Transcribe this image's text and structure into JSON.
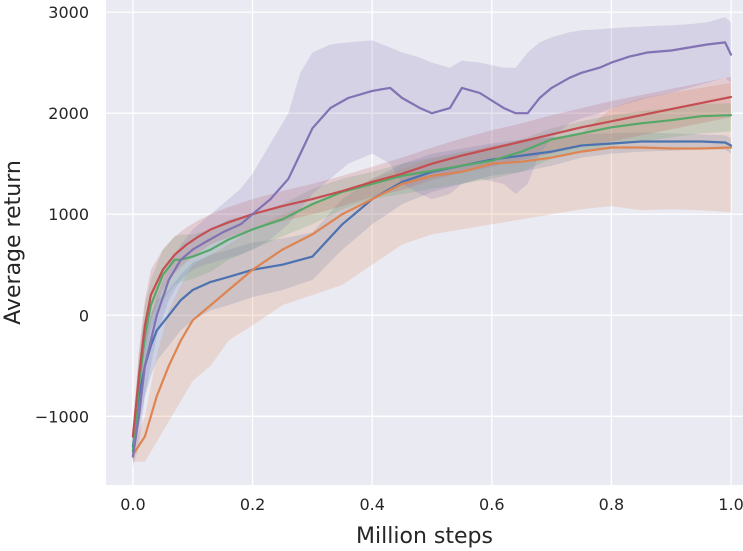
{
  "chart_data": {
    "type": "line",
    "title": "",
    "xlabel": "Million steps",
    "ylabel": "Average return",
    "xlim": [
      -0.045,
      1.02
    ],
    "ylim": [
      -1680,
      3120
    ],
    "xticks": [
      0.0,
      0.2,
      0.4,
      0.6,
      0.8,
      1.0
    ],
    "xtick_labels": [
      "0.0",
      "0.2",
      "0.4",
      "0.6",
      "0.8",
      "1.0"
    ],
    "yticks": [
      -1000,
      0,
      1000,
      2000,
      3000
    ],
    "ytick_labels": [
      "−1000",
      "0",
      "1000",
      "2000",
      "3000"
    ],
    "grid": true,
    "legend": "none",
    "background": "#eaeaf2",
    "series": [
      {
        "color": "#4c72b0",
        "x": [
          0.0,
          0.01,
          0.02,
          0.03,
          0.04,
          0.06,
          0.08,
          0.1,
          0.13,
          0.16,
          0.2,
          0.25,
          0.3,
          0.35,
          0.4,
          0.45,
          0.5,
          0.55,
          0.6,
          0.65,
          0.7,
          0.75,
          0.8,
          0.85,
          0.9,
          0.95,
          0.99,
          1.0
        ],
        "y": [
          -1300,
          -800,
          -500,
          -300,
          -150,
          0,
          150,
          250,
          330,
          380,
          450,
          500,
          580,
          900,
          1150,
          1320,
          1420,
          1480,
          1540,
          1580,
          1620,
          1680,
          1700,
          1720,
          1720,
          1720,
          1710,
          1680
        ],
        "upper": [
          -1150,
          -500,
          -200,
          0,
          150,
          250,
          400,
          520,
          600,
          650,
          720,
          760,
          820,
          1150,
          1350,
          1500,
          1600,
          1650,
          1700,
          1740,
          1760,
          1790,
          1800,
          1810,
          1800,
          1790,
          1780,
          1750
        ],
        "lower": [
          -1450,
          -1100,
          -800,
          -600,
          -450,
          -300,
          -150,
          -50,
          50,
          100,
          180,
          250,
          350,
          650,
          900,
          1100,
          1220,
          1300,
          1380,
          1420,
          1480,
          1560,
          1600,
          1620,
          1630,
          1640,
          1640,
          1600
        ]
      },
      {
        "color": "#dd8452",
        "x": [
          0.0,
          0.02,
          0.04,
          0.06,
          0.08,
          0.1,
          0.13,
          0.16,
          0.2,
          0.25,
          0.3,
          0.35,
          0.4,
          0.45,
          0.5,
          0.55,
          0.6,
          0.65,
          0.7,
          0.75,
          0.8,
          0.85,
          0.9,
          0.95,
          1.0
        ],
        "y": [
          -1380,
          -1200,
          -800,
          -500,
          -250,
          -50,
          100,
          250,
          450,
          650,
          800,
          1000,
          1150,
          1300,
          1380,
          1420,
          1500,
          1520,
          1560,
          1620,
          1660,
          1660,
          1650,
          1650,
          1660
        ],
        "upper": [
          -1300,
          -1000,
          -400,
          50,
          300,
          500,
          600,
          700,
          850,
          1000,
          1100,
          1200,
          1350,
          1450,
          1550,
          1600,
          1680,
          1720,
          1760,
          1800,
          2050,
          2150,
          2200,
          2250,
          2300
        ],
        "lower": [
          -1450,
          -1450,
          -1250,
          -1050,
          -850,
          -650,
          -500,
          -250,
          -100,
          100,
          200,
          300,
          500,
          700,
          800,
          850,
          900,
          950,
          1000,
          1050,
          1080,
          1040,
          1050,
          1040,
          1020
        ]
      },
      {
        "color": "#55a868",
        "x": [
          0.0,
          0.01,
          0.02,
          0.03,
          0.05,
          0.07,
          0.08,
          0.1,
          0.13,
          0.16,
          0.2,
          0.25,
          0.3,
          0.35,
          0.4,
          0.45,
          0.5,
          0.55,
          0.6,
          0.65,
          0.7,
          0.75,
          0.8,
          0.85,
          0.9,
          0.95,
          1.0
        ],
        "y": [
          -1350,
          -700,
          -200,
          100,
          400,
          550,
          550,
          580,
          650,
          750,
          850,
          950,
          1100,
          1220,
          1300,
          1380,
          1430,
          1480,
          1530,
          1620,
          1740,
          1800,
          1860,
          1900,
          1930,
          1970,
          1980
        ],
        "upper": [
          -1250,
          -400,
          100,
          350,
          650,
          780,
          800,
          800,
          850,
          950,
          1000,
          1100,
          1250,
          1350,
          1420,
          1500,
          1560,
          1620,
          1660,
          1740,
          1850,
          1920,
          1980,
          2020,
          2050,
          2090,
          2100
        ],
        "lower": [
          -1450,
          -1000,
          -500,
          -150,
          150,
          300,
          330,
          360,
          430,
          550,
          650,
          780,
          900,
          1050,
          1150,
          1200,
          1250,
          1300,
          1350,
          1420,
          1550,
          1620,
          1680,
          1720,
          1760,
          1800,
          1820
        ]
      },
      {
        "color": "#c44e52",
        "x": [
          0.0,
          0.01,
          0.02,
          0.03,
          0.05,
          0.07,
          0.09,
          0.11,
          0.13,
          0.16,
          0.2,
          0.25,
          0.3,
          0.35,
          0.4,
          0.45,
          0.5,
          0.55,
          0.6,
          0.65,
          0.7,
          0.75,
          0.8,
          0.85,
          0.9,
          0.95,
          1.0
        ],
        "y": [
          -1200,
          -600,
          -100,
          200,
          450,
          600,
          700,
          780,
          850,
          920,
          1000,
          1080,
          1150,
          1230,
          1320,
          1400,
          1500,
          1580,
          1650,
          1720,
          1790,
          1860,
          1920,
          1980,
          2040,
          2100,
          2160
        ],
        "upper": [
          -1100,
          -350,
          150,
          450,
          650,
          780,
          870,
          940,
          1000,
          1070,
          1150,
          1230,
          1300,
          1380,
          1470,
          1560,
          1660,
          1750,
          1830,
          1900,
          1980,
          2050,
          2120,
          2180,
          2240,
          2300,
          2360
        ],
        "lower": [
          -1350,
          -850,
          -350,
          -50,
          250,
          420,
          530,
          620,
          700,
          770,
          850,
          930,
          1000,
          1080,
          1170,
          1240,
          1340,
          1410,
          1470,
          1540,
          1600,
          1670,
          1720,
          1780,
          1840,
          1900,
          1960
        ]
      },
      {
        "color": "#8172b3",
        "x": [
          0.0,
          0.01,
          0.02,
          0.04,
          0.06,
          0.08,
          0.1,
          0.12,
          0.15,
          0.18,
          0.2,
          0.23,
          0.26,
          0.28,
          0.3,
          0.33,
          0.36,
          0.4,
          0.43,
          0.45,
          0.48,
          0.5,
          0.53,
          0.55,
          0.58,
          0.62,
          0.64,
          0.66,
          0.68,
          0.7,
          0.73,
          0.75,
          0.78,
          0.8,
          0.83,
          0.86,
          0.9,
          0.93,
          0.96,
          0.99,
          1.0
        ],
        "y": [
          -1400,
          -1000,
          -500,
          0,
          350,
          550,
          650,
          720,
          820,
          900,
          1000,
          1150,
          1350,
          1600,
          1850,
          2050,
          2150,
          2220,
          2250,
          2150,
          2050,
          2000,
          2050,
          2250,
          2200,
          2050,
          2000,
          2000,
          2150,
          2250,
          2350,
          2400,
          2450,
          2500,
          2560,
          2600,
          2620,
          2650,
          2680,
          2700,
          2580
        ],
        "upper": [
          -1200,
          -700,
          -200,
          200,
          500,
          700,
          850,
          950,
          1100,
          1250,
          1400,
          1700,
          2000,
          2400,
          2600,
          2680,
          2700,
          2720,
          2650,
          2600,
          2550,
          2500,
          2450,
          2520,
          2500,
          2450,
          2450,
          2600,
          2700,
          2750,
          2800,
          2820,
          2830,
          2840,
          2850,
          2860,
          2870,
          2880,
          2900,
          2950,
          2900
        ],
        "lower": [
          -1500,
          -1300,
          -800,
          -200,
          150,
          350,
          450,
          500,
          550,
          600,
          650,
          750,
          900,
          1050,
          1200,
          1350,
          1500,
          1600,
          1500,
          1300,
          1200,
          1150,
          1200,
          1300,
          1350,
          1300,
          1200,
          1300,
          1600,
          1750,
          1900,
          1950,
          2000,
          2050,
          2100,
          2150,
          2200,
          2250,
          2300,
          2350,
          2300
        ]
      }
    ]
  }
}
